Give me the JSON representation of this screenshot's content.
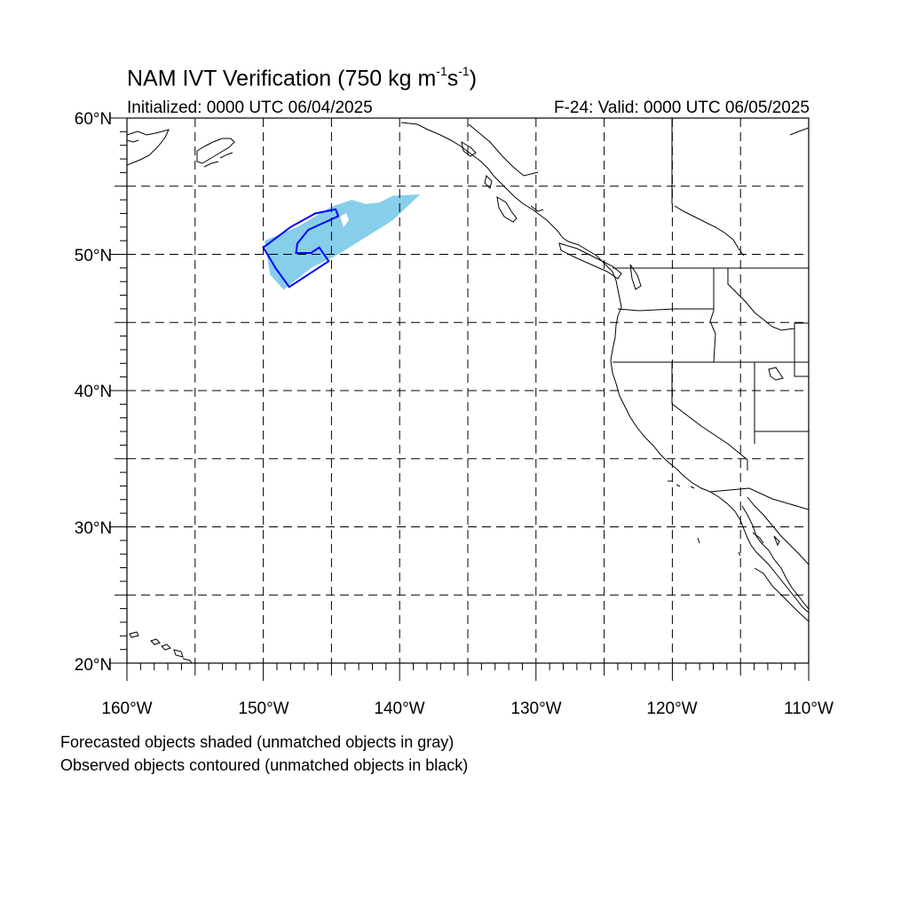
{
  "title": {
    "prefix": "NAM IVT Verification (750 kg m",
    "exp1": "-1",
    "mid": "s",
    "exp2": "-1",
    "suffix": ")"
  },
  "initialized": "Initialized: 0000 UTC 06/04/2025",
  "valid": "F-24: Valid: 0000 UTC 06/05/2025",
  "notes": {
    "forecast": "Forecasted objects shaded (unmatched objects in gray)",
    "observed": "Observed objects contoured (unmatched objects in black)"
  },
  "map": {
    "lon_range": [
      -160,
      -110
    ],
    "lat_range": [
      20,
      60
    ],
    "lat_labels": [
      "20°N",
      "30°N",
      "40°N",
      "50°N",
      "60°N"
    ],
    "lon_labels": [
      "160°W",
      "150°W",
      "140°W",
      "130°W",
      "120°W",
      "110°W"
    ],
    "grid_style": "dashed, every 5 degrees",
    "forecast_fill_color": "#87ceeb",
    "observed_contour_color": "#0000ff",
    "forecast_object": [
      [
        -149.9,
        51
      ],
      [
        -147.5,
        52
      ],
      [
        -145,
        53.5
      ],
      [
        -143.5,
        54
      ],
      [
        -142.5,
        53.7
      ],
      [
        -141.5,
        53.8
      ],
      [
        -140.5,
        54.3
      ],
      [
        -138.5,
        54.4
      ],
      [
        -140.5,
        52.5
      ],
      [
        -144.5,
        50
      ],
      [
        -146.5,
        49
      ],
      [
        -148.5,
        47.4
      ],
      [
        -149.5,
        48.5
      ]
    ],
    "observed_object": [
      [
        -150,
        50.5
      ],
      [
        -148,
        52
      ],
      [
        -146.2,
        53
      ],
      [
        -144.7,
        53.3
      ],
      [
        -144.5,
        52.8
      ],
      [
        -146.7,
        51.8
      ],
      [
        -147.5,
        50.8
      ],
      [
        -147.6,
        50.1
      ],
      [
        -146.5,
        50.1
      ],
      [
        -145.9,
        50.5
      ],
      [
        -145.2,
        49.5
      ],
      [
        -148.1,
        47.6
      ],
      [
        -149.1,
        49
      ]
    ]
  }
}
